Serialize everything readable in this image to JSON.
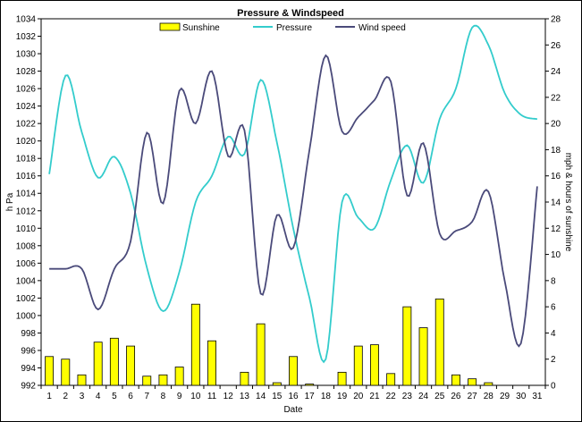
{
  "chart_data": {
    "type": "bar+line",
    "title": "Pressure & Windspeed",
    "xlabel": "Date",
    "ylabel_left": "h Pa",
    "ylabel_right": "mph & hours of sunshine",
    "ylim_left": [
      992,
      1034
    ],
    "ylim_right": [
      0,
      28
    ],
    "yticks_left": [
      "992",
      "994",
      "996",
      "998",
      "1000",
      "1002",
      "1004",
      "1006",
      "1008",
      "1010",
      "1012",
      "1014",
      "1016",
      "1018",
      "1020",
      "1022",
      "1024",
      "1026",
      "1028",
      "1030",
      "1032",
      "1034"
    ],
    "yticks_right": [
      "0",
      "2",
      "4",
      "6",
      "8",
      "10",
      "12",
      "14",
      "16",
      "18",
      "20",
      "22",
      "24",
      "26",
      "28"
    ],
    "categories": [
      "1",
      "2",
      "3",
      "4",
      "5",
      "6",
      "7",
      "8",
      "9",
      "10",
      "11",
      "12",
      "13",
      "14",
      "15",
      "16",
      "17",
      "18",
      "19",
      "20",
      "21",
      "22",
      "23",
      "24",
      "25",
      "26",
      "27",
      "28",
      "29",
      "30",
      "31"
    ],
    "legend_position": "top",
    "series": [
      {
        "name": "Sunshine",
        "kind": "bar",
        "axis": "right",
        "color": "#ffff00",
        "values": [
          2.2,
          2.0,
          0.8,
          3.3,
          3.6,
          3.0,
          0.7,
          0.8,
          1.4,
          6.2,
          3.4,
          0.0,
          1.0,
          4.7,
          0.2,
          2.2,
          0.1,
          0.0,
          1.0,
          3.0,
          3.1,
          0.9,
          6.0,
          4.4,
          6.6,
          0.8,
          0.5,
          0.2,
          0.0,
          0.0,
          0.0
        ]
      },
      {
        "name": "Pressure",
        "kind": "line",
        "axis": "left",
        "color": "#33cccc",
        "values": [
          1016.2,
          1027.5,
          1021.0,
          1015.8,
          1018.2,
          1014.0,
          1005.5,
          1000.5,
          1005.0,
          1013.0,
          1016.0,
          1020.5,
          1018.5,
          1027.0,
          1019.8,
          1010.0,
          1002.0,
          995.0,
          1013.0,
          1011.2,
          1010.0,
          1015.5,
          1019.5,
          1015.2,
          1022.5,
          1026.0,
          1033.0,
          1031.0,
          1025.5,
          1023.0,
          1022.5
        ]
      },
      {
        "name": "Wind speed",
        "kind": "line",
        "axis": "right",
        "color": "#4a4a7a",
        "values": [
          8.9,
          8.9,
          8.9,
          5.8,
          8.9,
          11.0,
          19.3,
          13.9,
          22.5,
          20.0,
          24.0,
          17.5,
          19.5,
          7.0,
          13.0,
          10.5,
          18.0,
          25.2,
          19.4,
          20.5,
          21.8,
          23.2,
          14.5,
          18.5,
          11.6,
          11.8,
          12.5,
          14.8,
          8.0,
          3.2,
          15.2
        ]
      }
    ]
  }
}
